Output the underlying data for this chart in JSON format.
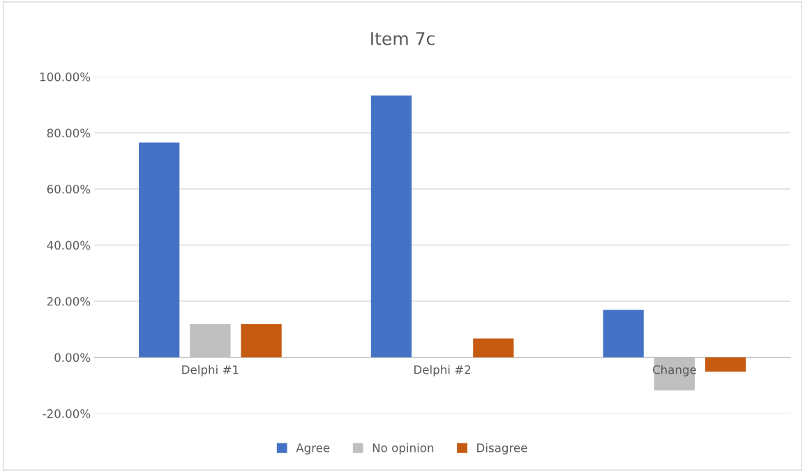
{
  "chart_data": {
    "type": "bar",
    "title": "Item 7c",
    "categories": [
      "Delphi #1",
      "Delphi #2",
      "Change"
    ],
    "series": [
      {
        "name": "Agree",
        "color": "#4472c4",
        "values": [
          76.5,
          93.3,
          16.9
        ]
      },
      {
        "name": "No opinion",
        "color": "#bfbfbf",
        "values": [
          11.8,
          0,
          -11.8
        ]
      },
      {
        "name": "Disagree",
        "color": "#c55a11",
        "values": [
          11.8,
          6.7,
          -5.1
        ]
      }
    ],
    "ylim": [
      -20,
      100
    ],
    "yticks": [
      {
        "value": -20,
        "label": "-20.00%"
      },
      {
        "value": 0,
        "label": "0.00%"
      },
      {
        "value": 20,
        "label": "20.00%"
      },
      {
        "value": 40,
        "label": "40.00%"
      },
      {
        "value": 60,
        "label": "60.00%"
      },
      {
        "value": 80,
        "label": "80.00%"
      },
      {
        "value": 100,
        "label": "100.00%"
      }
    ],
    "grid": "y",
    "legend": "bottom"
  }
}
